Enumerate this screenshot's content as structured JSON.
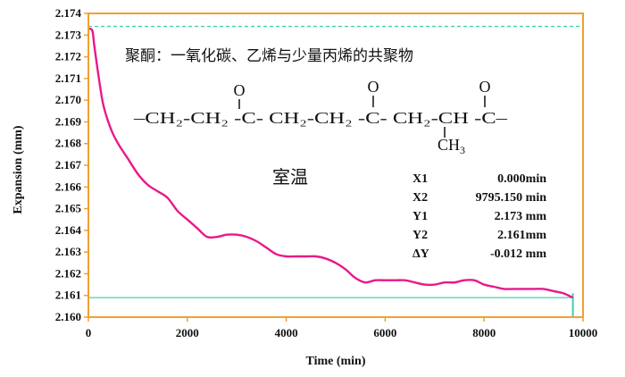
{
  "chart_data": {
    "type": "line",
    "xlabel": "Time (min)",
    "ylabel": "Expansion (mm)",
    "xlim": [
      0,
      10000
    ],
    "ylim": [
      2.16,
      2.174
    ],
    "x_ticks": [
      "0",
      "2000",
      "4000",
      "6000",
      "8000",
      "10000"
    ],
    "y_ticks": [
      "2.160",
      "2.161",
      "2.162",
      "2.163",
      "2.164",
      "2.165",
      "2.166",
      "2.167",
      "2.168",
      "2.169",
      "2.170",
      "2.171",
      "2.172",
      "2.173",
      "2.174"
    ],
    "grid": false,
    "colors": {
      "frame": "#f0a030",
      "curve": "#e8198b",
      "reference": "#40d0b0",
      "text": "#111111"
    },
    "annotations": {
      "title": "聚酮：一氧化碳、乙烯与少量丙烯的共聚物",
      "condition": "室温",
      "formula": {
        "oxygen": "O",
        "main": "–CH₂-CH₂ -C- CH₂-CH₂ -C- CH₂-CH -C–",
        "branch_prefix": "CH",
        "branch_sub": "3"
      }
    },
    "stats": [
      {
        "label": "X1",
        "value": "0.000min"
      },
      {
        "label": "X2",
        "value": "9795.150 min"
      },
      {
        "label": "Y1",
        "value": "2.173 mm"
      },
      {
        "label": "Y2",
        "value": "2.161mm"
      },
      {
        "label": "ΔY",
        "value": "-0.012 mm"
      }
    ],
    "reference_lines": [
      {
        "axis": "y",
        "value": 2.1734,
        "style": "dashed",
        "x_start": 0,
        "x_end": 10000
      },
      {
        "axis": "y",
        "value": 2.1609,
        "style": "solid",
        "x_start": 0,
        "x_end": 9795
      }
    ],
    "cursor_mark": {
      "x": 9795,
      "y_from": 2.16,
      "y_to": 2.1611
    },
    "series": [
      {
        "x": [
          0,
          80,
          120,
          200,
          300,
          450,
          600,
          800,
          1000,
          1200,
          1400,
          1600,
          1800,
          2000,
          2200,
          2400,
          2600,
          2800,
          3000,
          3200,
          3400,
          3600,
          3800,
          4000,
          4200,
          4400,
          4600,
          4800,
          5000,
          5200,
          5400,
          5600,
          5800,
          6000,
          6200,
          6400,
          6600,
          6800,
          7000,
          7200,
          7400,
          7600,
          7800,
          8000,
          8200,
          8400,
          8600,
          8800,
          9000,
          9200,
          9400,
          9600,
          9795
        ],
        "y": [
          2.1733,
          2.1732,
          2.1725,
          2.1712,
          2.1698,
          2.1687,
          2.168,
          2.1673,
          2.1666,
          2.1661,
          2.1658,
          2.1655,
          2.1649,
          2.1645,
          2.1641,
          2.1637,
          2.1637,
          2.1638,
          2.1638,
          2.1637,
          2.1635,
          2.1632,
          2.1629,
          2.1628,
          2.1628,
          2.1628,
          2.1628,
          2.1627,
          2.1625,
          2.1622,
          2.1618,
          2.1616,
          2.1617,
          2.1617,
          2.1617,
          2.1617,
          2.1616,
          2.1615,
          2.1615,
          2.1616,
          2.1616,
          2.1617,
          2.1617,
          2.1615,
          2.1614,
          2.1613,
          2.1613,
          2.1613,
          2.1613,
          2.1613,
          2.1612,
          2.1611,
          2.1609
        ]
      }
    ]
  }
}
